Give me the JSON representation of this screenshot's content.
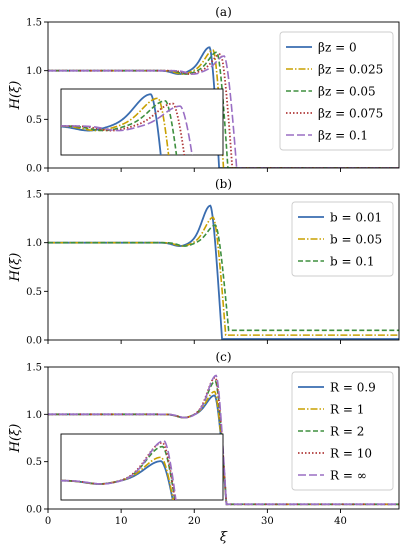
{
  "colors": {
    "blue": "#3a6db0",
    "gold": "#c8a000",
    "green": "#3e8f3e",
    "red": "#b03a3a",
    "purple": "#9a6fc4"
  },
  "chart_data": [
    {
      "type": "line",
      "title": "(a)",
      "xlabel": "",
      "ylabel": "H(ξ)",
      "xlim": [
        0,
        48
      ],
      "ylim": [
        0,
        1.5
      ],
      "yticks": [
        "0.0",
        "0.5",
        "1.0",
        "1.5"
      ],
      "xticks_visible": false,
      "legend_position": "top-right",
      "inset": true,
      "series": [
        {
          "name": "β_z = 0",
          "legend": "βz = 0",
          "base": 0.0,
          "peak": 1.24,
          "peak_x": 22.1,
          "drop_x": 23.4
        },
        {
          "name": "β_z = 0.025",
          "legend": "βz = 0.025",
          "base": 0.0,
          "peak": 1.21,
          "peak_x": 22.6,
          "drop_x": 24.0
        },
        {
          "name": "β_z = 0.05",
          "legend": "βz = 0.05",
          "base": 0.0,
          "peak": 1.19,
          "peak_x": 23.1,
          "drop_x": 24.6
        },
        {
          "name": "β_z = 0.075",
          "legend": "βz = 0.075",
          "base": 0.0,
          "peak": 1.17,
          "peak_x": 23.6,
          "drop_x": 25.2
        },
        {
          "name": "β_z = 0.1",
          "legend": "βz = 0.1",
          "base": 0.0,
          "peak": 1.15,
          "peak_x": 24.1,
          "drop_x": 25.8
        }
      ]
    },
    {
      "type": "line",
      "title": "(b)",
      "xlabel": "",
      "ylabel": "H(ξ)",
      "xlim": [
        0,
        48
      ],
      "ylim": [
        0,
        1.5
      ],
      "yticks": [
        "0.0",
        "0.5",
        "1.0",
        "1.5"
      ],
      "xticks_visible": false,
      "legend_position": "top-right",
      "inset": false,
      "series": [
        {
          "name": "b = 0.01",
          "legend": "b = 0.01",
          "base": 0.01,
          "peak": 1.38,
          "peak_x": 22.2,
          "drop_x": 23.8
        },
        {
          "name": "b = 0.05",
          "legend": "b = 0.05",
          "base": 0.05,
          "peak": 1.26,
          "peak_x": 22.6,
          "drop_x": 24.3
        },
        {
          "name": "b = 0.1",
          "legend": "b = 0.1",
          "base": 0.1,
          "peak": 1.18,
          "peak_x": 22.9,
          "drop_x": 24.7
        }
      ]
    },
    {
      "type": "line",
      "title": "(c)",
      "xlabel": "ξ",
      "ylabel": "H(ξ)",
      "xlim": [
        0,
        48
      ],
      "ylim": [
        0,
        1.5
      ],
      "yticks": [
        "0.0",
        "0.5",
        "1.0",
        "1.5"
      ],
      "xticks": [
        "0",
        "10",
        "20",
        "30",
        "40"
      ],
      "xticks_visible": true,
      "legend_position": "top-right",
      "inset": true,
      "series": [
        {
          "name": "R = 0.9",
          "legend": "R = 0.9",
          "base": 0.05,
          "peak": 1.2,
          "peak_x": 22.8,
          "drop_x": 24.4
        },
        {
          "name": "R = 1",
          "legend": "R = 1",
          "base": 0.05,
          "peak": 1.24,
          "peak_x": 22.8,
          "drop_x": 24.4
        },
        {
          "name": "R = 2",
          "legend": "R = 2",
          "base": 0.05,
          "peak": 1.35,
          "peak_x": 22.9,
          "drop_x": 24.4
        },
        {
          "name": "R = 10",
          "legend": "R = 10",
          "base": 0.05,
          "peak": 1.39,
          "peak_x": 22.9,
          "drop_x": 24.4
        },
        {
          "name": "R = ∞",
          "legend": "R = ∞",
          "base": 0.05,
          "peak": 1.41,
          "peak_x": 23.0,
          "drop_x": 24.4
        }
      ]
    }
  ]
}
